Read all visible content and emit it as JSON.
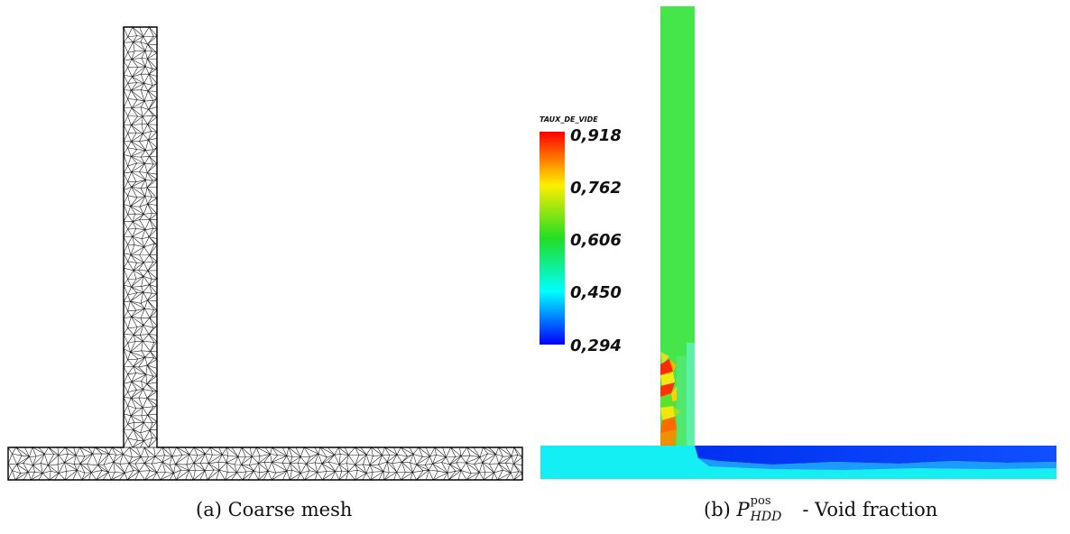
{
  "panel_a": {
    "caption_prefix": "(a)",
    "caption_text": "Coarse mesh"
  },
  "panel_b": {
    "caption_prefix": "(b)",
    "caption_symbol": "P",
    "caption_superscript": "pos",
    "caption_subscript": "HDD",
    "caption_text": "- Void fraction",
    "colorbar": {
      "title": "TAUX_DE_VIDE",
      "ticks": [
        "0,918",
        "0,762",
        "0,606",
        "0,450",
        "0,294"
      ],
      "range": [
        0.294,
        0.918
      ],
      "colors": [
        "#ff0000",
        "#ffff00",
        "#22dd22",
        "#00ffff",
        "#0000ff"
      ]
    },
    "field_colors": {
      "vertical_pipe": "#44e64a",
      "horizontal_pipe": "#14f0f4",
      "low_region": "#1e64ff",
      "high_region": "#ff2a00",
      "mid_region": "#f0e616"
    }
  }
}
